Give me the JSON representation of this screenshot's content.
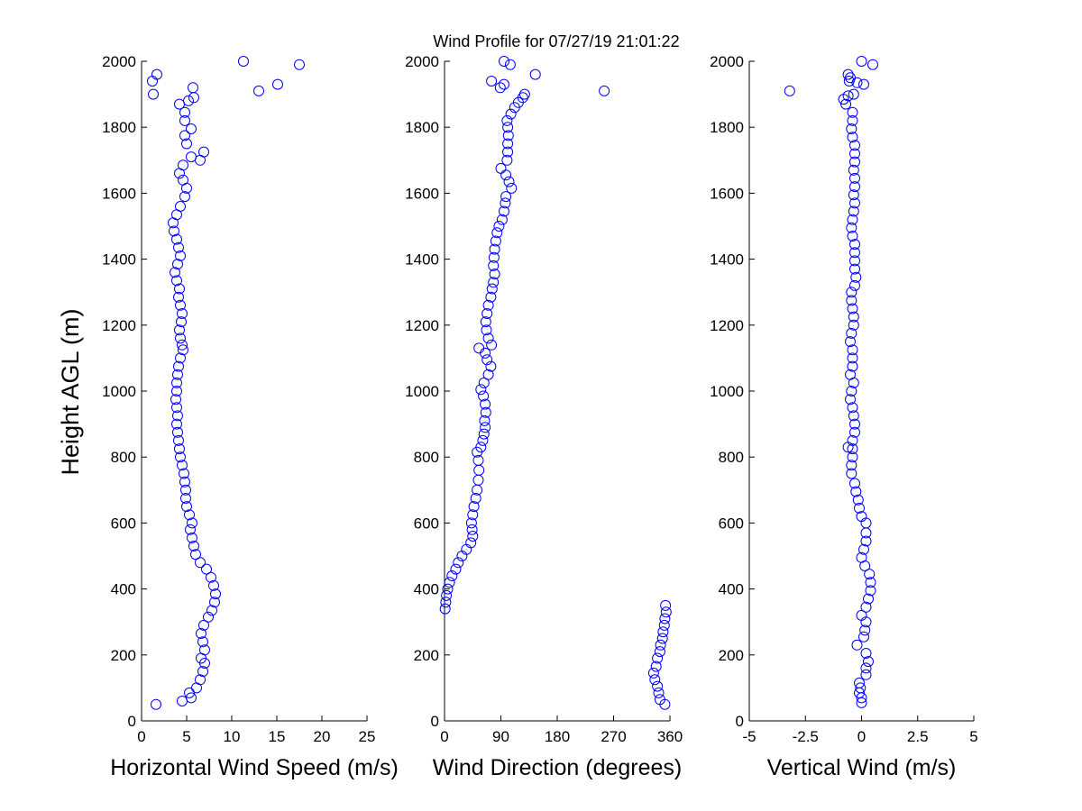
{
  "chart_data": {
    "type": "scatter",
    "title": "Wind Profile for  07/27/19 21:01:22",
    "ylabel": "Height AGL (m)",
    "ylim": [
      0,
      2000
    ],
    "y_ticks": [
      "0",
      "200",
      "400",
      "600",
      "800",
      "1000",
      "1200",
      "1400",
      "1600",
      "1800",
      "2000"
    ],
    "marker_color": "#0000ff",
    "panels": [
      {
        "name": "horizontal-wind-speed",
        "xlabel": "Horizontal Wind Speed (m/s)",
        "xlim": [
          0,
          25
        ],
        "x_ticks": [
          0,
          5,
          10,
          15,
          20,
          25
        ],
        "x_tick_labels": [
          "0",
          "5",
          "10",
          "15",
          "20",
          "25"
        ],
        "points": [
          [
            1.6,
            50
          ],
          [
            4.5,
            60
          ],
          [
            5.5,
            70
          ],
          [
            5.3,
            85
          ],
          [
            6.1,
            100
          ],
          [
            6.5,
            125
          ],
          [
            6.8,
            150
          ],
          [
            7.0,
            175
          ],
          [
            6.6,
            190
          ],
          [
            7.0,
            215
          ],
          [
            6.8,
            240
          ],
          [
            6.6,
            265
          ],
          [
            6.9,
            290
          ],
          [
            7.4,
            315
          ],
          [
            7.8,
            335
          ],
          [
            8.1,
            360
          ],
          [
            8.2,
            385
          ],
          [
            8.0,
            410
          ],
          [
            7.7,
            435
          ],
          [
            7.2,
            460
          ],
          [
            6.5,
            480
          ],
          [
            6.0,
            505
          ],
          [
            5.8,
            530
          ],
          [
            5.6,
            555
          ],
          [
            5.4,
            580
          ],
          [
            5.6,
            600
          ],
          [
            5.3,
            625
          ],
          [
            5.0,
            650
          ],
          [
            4.9,
            675
          ],
          [
            4.9,
            700
          ],
          [
            4.8,
            725
          ],
          [
            4.7,
            750
          ],
          [
            4.5,
            775
          ],
          [
            4.3,
            800
          ],
          [
            4.2,
            825
          ],
          [
            4.1,
            850
          ],
          [
            4.0,
            875
          ],
          [
            3.9,
            900
          ],
          [
            4.0,
            925
          ],
          [
            3.9,
            950
          ],
          [
            3.8,
            975
          ],
          [
            3.9,
            1000
          ],
          [
            3.9,
            1025
          ],
          [
            4.0,
            1050
          ],
          [
            4.1,
            1075
          ],
          [
            4.3,
            1100
          ],
          [
            4.6,
            1125
          ],
          [
            4.5,
            1140
          ],
          [
            4.3,
            1160
          ],
          [
            4.2,
            1185
          ],
          [
            4.4,
            1210
          ],
          [
            4.5,
            1235
          ],
          [
            4.3,
            1260
          ],
          [
            4.1,
            1285
          ],
          [
            4.2,
            1310
          ],
          [
            3.9,
            1335
          ],
          [
            3.7,
            1360
          ],
          [
            4.0,
            1385
          ],
          [
            4.3,
            1410
          ],
          [
            4.1,
            1435
          ],
          [
            3.9,
            1460
          ],
          [
            3.6,
            1485
          ],
          [
            3.5,
            1510
          ],
          [
            3.9,
            1535
          ],
          [
            4.3,
            1560
          ],
          [
            4.8,
            1590
          ],
          [
            5.0,
            1615
          ],
          [
            4.6,
            1640
          ],
          [
            4.2,
            1660
          ],
          [
            4.6,
            1685
          ],
          [
            5.5,
            1710
          ],
          [
            6.5,
            1700
          ],
          [
            6.9,
            1725
          ],
          [
            5.0,
            1750
          ],
          [
            4.8,
            1775
          ],
          [
            5.5,
            1795
          ],
          [
            4.8,
            1820
          ],
          [
            4.8,
            1845
          ],
          [
            4.2,
            1870
          ],
          [
            5.2,
            1880
          ],
          [
            5.8,
            1890
          ],
          [
            5.7,
            1920
          ],
          [
            1.3,
            1900
          ],
          [
            1.2,
            1940
          ],
          [
            1.7,
            1960
          ],
          [
            13.0,
            1910
          ],
          [
            15.1,
            1930
          ],
          [
            11.3,
            2000
          ],
          [
            17.5,
            1990
          ]
        ]
      },
      {
        "name": "wind-direction",
        "xlabel": "Wind Direction (degrees)",
        "xlim": [
          0,
          360
        ],
        "x_ticks": [
          0,
          90,
          180,
          270,
          360
        ],
        "x_tick_labels": [
          "0",
          "90",
          "180",
          "270",
          "360"
        ],
        "points": [
          [
            352,
            50
          ],
          [
            344,
            65
          ],
          [
            342,
            85
          ],
          [
            340,
            105
          ],
          [
            336,
            125
          ],
          [
            334,
            145
          ],
          [
            338,
            165
          ],
          [
            340,
            190
          ],
          [
            344,
            210
          ],
          [
            345,
            230
          ],
          [
            348,
            250
          ],
          [
            349,
            270
          ],
          [
            351,
            290
          ],
          [
            352,
            310
          ],
          [
            354,
            330
          ],
          [
            353,
            350
          ],
          [
            1,
            340
          ],
          [
            2,
            360
          ],
          [
            3,
            380
          ],
          [
            5,
            400
          ],
          [
            8,
            420
          ],
          [
            12,
            440
          ],
          [
            18,
            460
          ],
          [
            22,
            480
          ],
          [
            28,
            500
          ],
          [
            35,
            520
          ],
          [
            42,
            540
          ],
          [
            45,
            560
          ],
          [
            44,
            580
          ],
          [
            43,
            600
          ],
          [
            45,
            625
          ],
          [
            47,
            650
          ],
          [
            50,
            675
          ],
          [
            52,
            700
          ],
          [
            54,
            730
          ],
          [
            55,
            760
          ],
          [
            54,
            790
          ],
          [
            52,
            815
          ],
          [
            58,
            830
          ],
          [
            61,
            850
          ],
          [
            63,
            870
          ],
          [
            65,
            890
          ],
          [
            64,
            910
          ],
          [
            66,
            935
          ],
          [
            65,
            960
          ],
          [
            62,
            985
          ],
          [
            58,
            1005
          ],
          [
            63,
            1025
          ],
          [
            70,
            1050
          ],
          [
            74,
            1075
          ],
          [
            68,
            1095
          ],
          [
            65,
            1115
          ],
          [
            55,
            1130
          ],
          [
            75,
            1140
          ],
          [
            70,
            1160
          ],
          [
            67,
            1185
          ],
          [
            66,
            1210
          ],
          [
            68,
            1235
          ],
          [
            70,
            1260
          ],
          [
            74,
            1285
          ],
          [
            76,
            1310
          ],
          [
            78,
            1330
          ],
          [
            80,
            1355
          ],
          [
            78,
            1380
          ],
          [
            79,
            1405
          ],
          [
            80,
            1430
          ],
          [
            82,
            1455
          ],
          [
            84,
            1480
          ],
          [
            87,
            1500
          ],
          [
            92,
            1520
          ],
          [
            95,
            1545
          ],
          [
            97,
            1570
          ],
          [
            98,
            1590
          ],
          [
            107,
            1615
          ],
          [
            103,
            1635
          ],
          [
            98,
            1655
          ],
          [
            90,
            1675
          ],
          [
            100,
            1700
          ],
          [
            101,
            1725
          ],
          [
            101,
            1750
          ],
          [
            102,
            1775
          ],
          [
            101,
            1800
          ],
          [
            100,
            1820
          ],
          [
            106,
            1840
          ],
          [
            112,
            1860
          ],
          [
            118,
            1875
          ],
          [
            125,
            1890
          ],
          [
            128,
            1900
          ],
          [
            89,
            1920
          ],
          [
            95,
            1930
          ],
          [
            75,
            1940
          ],
          [
            145,
            1960
          ],
          [
            95,
            2000
          ],
          [
            105,
            1990
          ],
          [
            255,
            1910
          ]
        ]
      },
      {
        "name": "vertical-wind",
        "xlabel": "Vertical Wind (m/s)",
        "xlim": [
          -5,
          5
        ],
        "x_ticks": [
          -5,
          -2.5,
          0,
          2.5,
          5
        ],
        "x_tick_labels": [
          "-5",
          "-2.5",
          "0",
          "2.5",
          "5"
        ],
        "points": [
          [
            0.0,
            55
          ],
          [
            0.0,
            70
          ],
          [
            -0.1,
            85
          ],
          [
            -0.05,
            100
          ],
          [
            -0.1,
            115
          ],
          [
            0.2,
            140
          ],
          [
            0.2,
            160
          ],
          [
            0.3,
            180
          ],
          [
            0.2,
            205
          ],
          [
            -0.2,
            230
          ],
          [
            0.1,
            255
          ],
          [
            0.15,
            275
          ],
          [
            0.2,
            300
          ],
          [
            0.0,
            320
          ],
          [
            0.2,
            345
          ],
          [
            0.3,
            370
          ],
          [
            0.4,
            395
          ],
          [
            0.4,
            420
          ],
          [
            0.35,
            445
          ],
          [
            0.15,
            470
          ],
          [
            0.0,
            495
          ],
          [
            0.1,
            520
          ],
          [
            0.2,
            545
          ],
          [
            0.2,
            570
          ],
          [
            0.2,
            600
          ],
          [
            0.0,
            620
          ],
          [
            -0.1,
            645
          ],
          [
            -0.15,
            670
          ],
          [
            -0.25,
            695
          ],
          [
            -0.3,
            720
          ],
          [
            -0.45,
            750
          ],
          [
            -0.45,
            775
          ],
          [
            -0.4,
            800
          ],
          [
            -0.4,
            825
          ],
          [
            -0.6,
            830
          ],
          [
            -0.4,
            850
          ],
          [
            -0.3,
            875
          ],
          [
            -0.3,
            900
          ],
          [
            -0.35,
            925
          ],
          [
            -0.4,
            950
          ],
          [
            -0.5,
            975
          ],
          [
            -0.45,
            1000
          ],
          [
            -0.35,
            1025
          ],
          [
            -0.5,
            1050
          ],
          [
            -0.4,
            1075
          ],
          [
            -0.4,
            1100
          ],
          [
            -0.4,
            1125
          ],
          [
            -0.5,
            1150
          ],
          [
            -0.45,
            1175
          ],
          [
            -0.35,
            1200
          ],
          [
            -0.35,
            1225
          ],
          [
            -0.4,
            1250
          ],
          [
            -0.45,
            1275
          ],
          [
            -0.45,
            1300
          ],
          [
            -0.3,
            1320
          ],
          [
            -0.25,
            1345
          ],
          [
            -0.3,
            1370
          ],
          [
            -0.3,
            1395
          ],
          [
            -0.3,
            1420
          ],
          [
            -0.3,
            1445
          ],
          [
            -0.4,
            1470
          ],
          [
            -0.45,
            1495
          ],
          [
            -0.4,
            1520
          ],
          [
            -0.35,
            1545
          ],
          [
            -0.3,
            1570
          ],
          [
            -0.35,
            1595
          ],
          [
            -0.3,
            1620
          ],
          [
            -0.3,
            1645
          ],
          [
            -0.35,
            1670
          ],
          [
            -0.3,
            1695
          ],
          [
            -0.3,
            1720
          ],
          [
            -0.3,
            1745
          ],
          [
            -0.4,
            1770
          ],
          [
            -0.45,
            1795
          ],
          [
            -0.4,
            1820
          ],
          [
            -0.4,
            1845
          ],
          [
            -0.7,
            1870
          ],
          [
            -0.8,
            1885
          ],
          [
            -0.6,
            1895
          ],
          [
            -0.35,
            1900
          ],
          [
            -0.5,
            1950
          ],
          [
            -0.6,
            1960
          ],
          [
            -0.55,
            1940
          ],
          [
            -0.2,
            1935
          ],
          [
            0.1,
            1930
          ],
          [
            -3.2,
            1910
          ],
          [
            0.0,
            2000
          ],
          [
            0.5,
            1990
          ]
        ]
      }
    ]
  }
}
